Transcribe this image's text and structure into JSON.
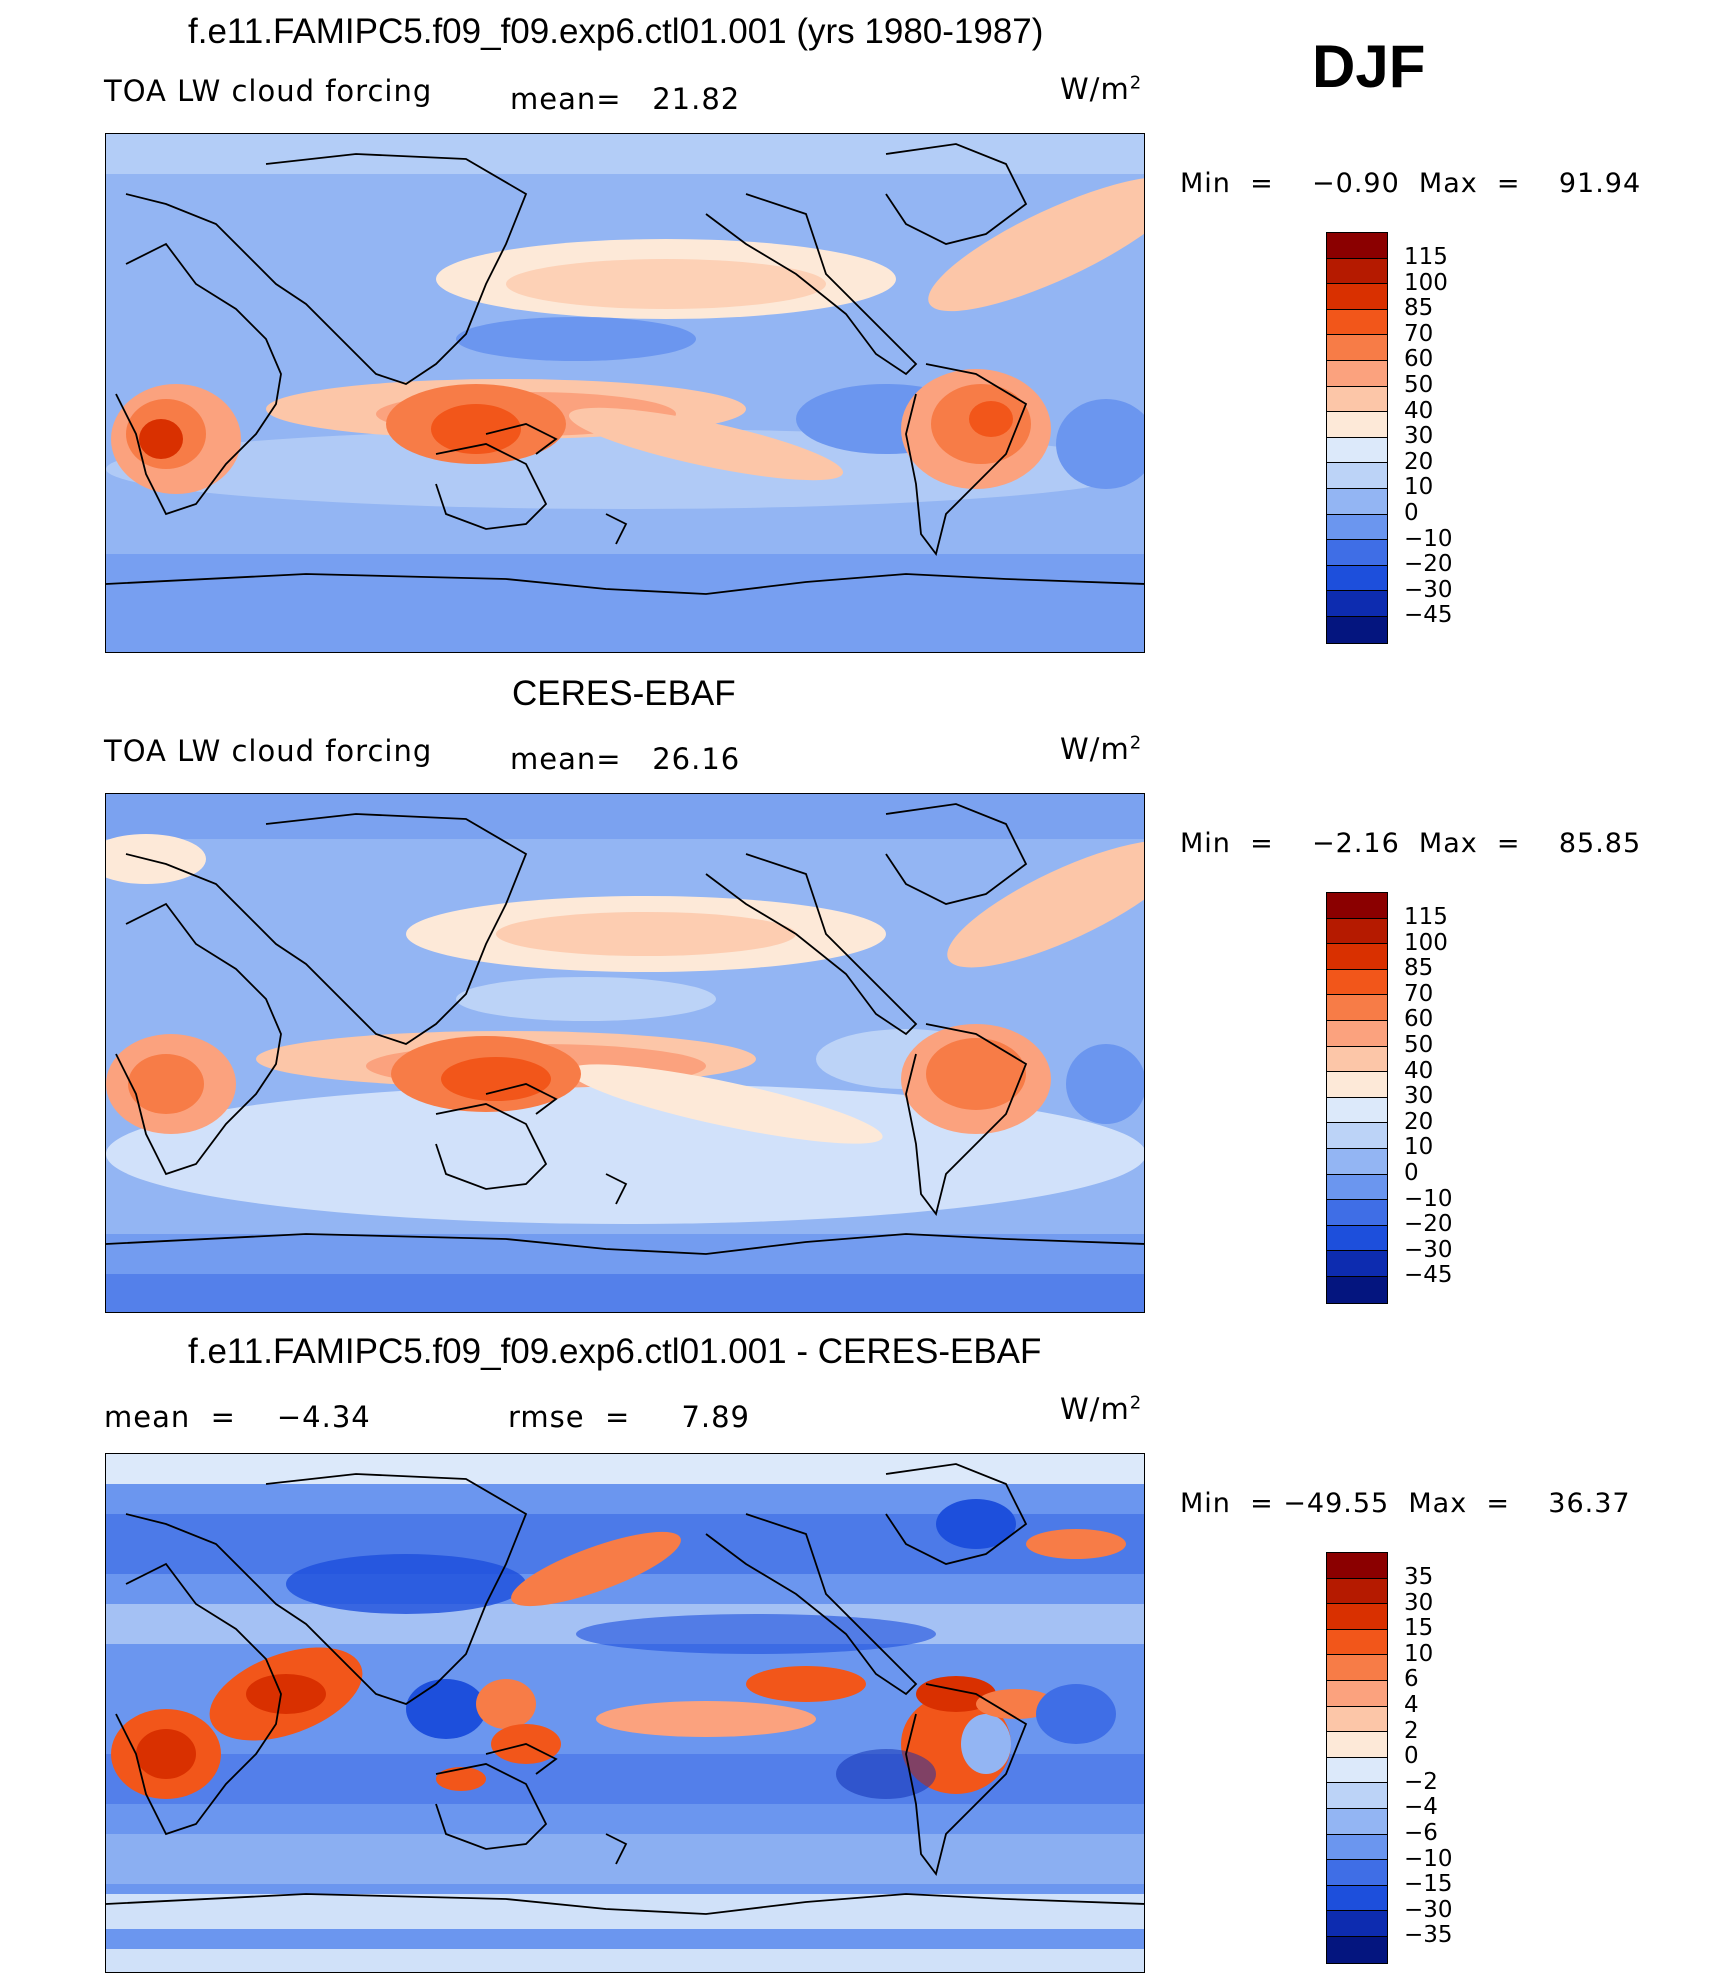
{
  "season": "DJF",
  "units": "W/m2",
  "panels": [
    {
      "title": "f.e11.FAMIPC5.f09_f09.exp6.ctl01.001 (yrs 1980-1987)",
      "left_label": "TOA LW cloud forcing",
      "center_label": "mean=   21.82",
      "units": "W/m",
      "units_sup": "2",
      "minmax": "Min  =    −0.90  Max  =    91.94",
      "levels": [
        "115",
        "100",
        "85",
        "70",
        "60",
        "50",
        "40",
        "30",
        "20",
        "10",
        "0",
        "−10",
        "−20",
        "−30",
        "−45"
      ],
      "colors": [
        "#8b0000",
        "#b51a00",
        "#d93000",
        "#f2561a",
        "#f77c47",
        "#fba27e",
        "#fcc6a8",
        "#fde9d8",
        "#dce9fa",
        "#bcd3f7",
        "#93b5f3",
        "#6b96ef",
        "#3f6ee6",
        "#1d4fdc",
        "#0d2cb0",
        "#04157f"
      ]
    },
    {
      "title": "CERES-EBAF",
      "left_label": "TOA LW cloud forcing",
      "center_label": "mean=   26.16",
      "units": "W/m",
      "units_sup": "2",
      "minmax": "Min  =    −2.16  Max  =    85.85",
      "levels": [
        "115",
        "100",
        "85",
        "70",
        "60",
        "50",
        "40",
        "30",
        "20",
        "10",
        "0",
        "−10",
        "−20",
        "−30",
        "−45"
      ],
      "colors": [
        "#8b0000",
        "#b51a00",
        "#d93000",
        "#f2561a",
        "#f77c47",
        "#fba27e",
        "#fcc6a8",
        "#fde9d8",
        "#dce9fa",
        "#bcd3f7",
        "#93b5f3",
        "#6b96ef",
        "#3f6ee6",
        "#1d4fdc",
        "#0d2cb0",
        "#04157f"
      ]
    },
    {
      "title": "f.e11.FAMIPC5.f09_f09.exp6.ctl01.001 - CERES-EBAF",
      "left_label": "mean  =    −4.34",
      "center_label": "rmse  =     7.89",
      "units": "W/m",
      "units_sup": "2",
      "minmax": "Min  = −49.55  Max  =    36.37",
      "levels": [
        "35",
        "30",
        "15",
        "10",
        "6",
        "4",
        "2",
        "0",
        "−2",
        "−4",
        "−6",
        "−10",
        "−15",
        "−30",
        "−35"
      ],
      "colors": [
        "#8b0000",
        "#b51a00",
        "#d93000",
        "#f2561a",
        "#f77c47",
        "#fba27e",
        "#fcc6a8",
        "#fde9d8",
        "#dce9fa",
        "#bcd3f7",
        "#93b5f3",
        "#6b96ef",
        "#3f6ee6",
        "#1d4fdc",
        "#0d2cb0",
        "#04157f"
      ]
    }
  ]
}
